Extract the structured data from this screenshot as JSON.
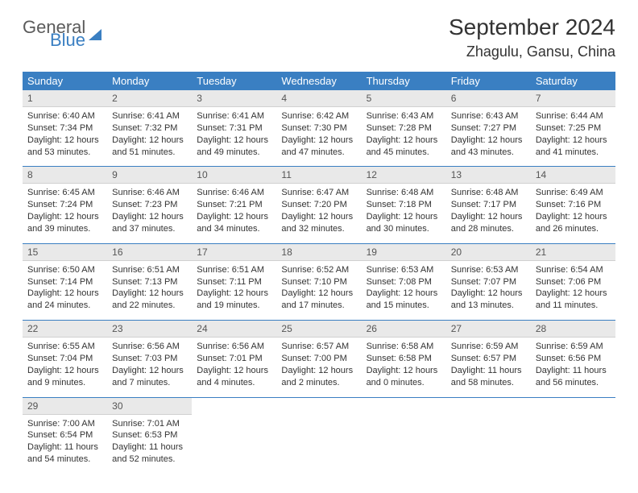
{
  "brand": {
    "word1": "General",
    "word2": "Blue"
  },
  "title": "September 2024",
  "location": "Zhagulu, Gansu, China",
  "day_headers": [
    "Sunday",
    "Monday",
    "Tuesday",
    "Wednesday",
    "Thursday",
    "Friday",
    "Saturday"
  ],
  "colors": {
    "header_bg": "#3a7fc2",
    "header_fg": "#ffffff",
    "daynum_bg": "#e9e9e9",
    "row_divider": "#3a7fc2",
    "text": "#333333"
  },
  "weeks": [
    [
      {
        "n": "1",
        "sr": "Sunrise: 6:40 AM",
        "ss": "Sunset: 7:34 PM",
        "dl1": "Daylight: 12 hours",
        "dl2": "and 53 minutes."
      },
      {
        "n": "2",
        "sr": "Sunrise: 6:41 AM",
        "ss": "Sunset: 7:32 PM",
        "dl1": "Daylight: 12 hours",
        "dl2": "and 51 minutes."
      },
      {
        "n": "3",
        "sr": "Sunrise: 6:41 AM",
        "ss": "Sunset: 7:31 PM",
        "dl1": "Daylight: 12 hours",
        "dl2": "and 49 minutes."
      },
      {
        "n": "4",
        "sr": "Sunrise: 6:42 AM",
        "ss": "Sunset: 7:30 PM",
        "dl1": "Daylight: 12 hours",
        "dl2": "and 47 minutes."
      },
      {
        "n": "5",
        "sr": "Sunrise: 6:43 AM",
        "ss": "Sunset: 7:28 PM",
        "dl1": "Daylight: 12 hours",
        "dl2": "and 45 minutes."
      },
      {
        "n": "6",
        "sr": "Sunrise: 6:43 AM",
        "ss": "Sunset: 7:27 PM",
        "dl1": "Daylight: 12 hours",
        "dl2": "and 43 minutes."
      },
      {
        "n": "7",
        "sr": "Sunrise: 6:44 AM",
        "ss": "Sunset: 7:25 PM",
        "dl1": "Daylight: 12 hours",
        "dl2": "and 41 minutes."
      }
    ],
    [
      {
        "n": "8",
        "sr": "Sunrise: 6:45 AM",
        "ss": "Sunset: 7:24 PM",
        "dl1": "Daylight: 12 hours",
        "dl2": "and 39 minutes."
      },
      {
        "n": "9",
        "sr": "Sunrise: 6:46 AM",
        "ss": "Sunset: 7:23 PM",
        "dl1": "Daylight: 12 hours",
        "dl2": "and 37 minutes."
      },
      {
        "n": "10",
        "sr": "Sunrise: 6:46 AM",
        "ss": "Sunset: 7:21 PM",
        "dl1": "Daylight: 12 hours",
        "dl2": "and 34 minutes."
      },
      {
        "n": "11",
        "sr": "Sunrise: 6:47 AM",
        "ss": "Sunset: 7:20 PM",
        "dl1": "Daylight: 12 hours",
        "dl2": "and 32 minutes."
      },
      {
        "n": "12",
        "sr": "Sunrise: 6:48 AM",
        "ss": "Sunset: 7:18 PM",
        "dl1": "Daylight: 12 hours",
        "dl2": "and 30 minutes."
      },
      {
        "n": "13",
        "sr": "Sunrise: 6:48 AM",
        "ss": "Sunset: 7:17 PM",
        "dl1": "Daylight: 12 hours",
        "dl2": "and 28 minutes."
      },
      {
        "n": "14",
        "sr": "Sunrise: 6:49 AM",
        "ss": "Sunset: 7:16 PM",
        "dl1": "Daylight: 12 hours",
        "dl2": "and 26 minutes."
      }
    ],
    [
      {
        "n": "15",
        "sr": "Sunrise: 6:50 AM",
        "ss": "Sunset: 7:14 PM",
        "dl1": "Daylight: 12 hours",
        "dl2": "and 24 minutes."
      },
      {
        "n": "16",
        "sr": "Sunrise: 6:51 AM",
        "ss": "Sunset: 7:13 PM",
        "dl1": "Daylight: 12 hours",
        "dl2": "and 22 minutes."
      },
      {
        "n": "17",
        "sr": "Sunrise: 6:51 AM",
        "ss": "Sunset: 7:11 PM",
        "dl1": "Daylight: 12 hours",
        "dl2": "and 19 minutes."
      },
      {
        "n": "18",
        "sr": "Sunrise: 6:52 AM",
        "ss": "Sunset: 7:10 PM",
        "dl1": "Daylight: 12 hours",
        "dl2": "and 17 minutes."
      },
      {
        "n": "19",
        "sr": "Sunrise: 6:53 AM",
        "ss": "Sunset: 7:08 PM",
        "dl1": "Daylight: 12 hours",
        "dl2": "and 15 minutes."
      },
      {
        "n": "20",
        "sr": "Sunrise: 6:53 AM",
        "ss": "Sunset: 7:07 PM",
        "dl1": "Daylight: 12 hours",
        "dl2": "and 13 minutes."
      },
      {
        "n": "21",
        "sr": "Sunrise: 6:54 AM",
        "ss": "Sunset: 7:06 PM",
        "dl1": "Daylight: 12 hours",
        "dl2": "and 11 minutes."
      }
    ],
    [
      {
        "n": "22",
        "sr": "Sunrise: 6:55 AM",
        "ss": "Sunset: 7:04 PM",
        "dl1": "Daylight: 12 hours",
        "dl2": "and 9 minutes."
      },
      {
        "n": "23",
        "sr": "Sunrise: 6:56 AM",
        "ss": "Sunset: 7:03 PM",
        "dl1": "Daylight: 12 hours",
        "dl2": "and 7 minutes."
      },
      {
        "n": "24",
        "sr": "Sunrise: 6:56 AM",
        "ss": "Sunset: 7:01 PM",
        "dl1": "Daylight: 12 hours",
        "dl2": "and 4 minutes."
      },
      {
        "n": "25",
        "sr": "Sunrise: 6:57 AM",
        "ss": "Sunset: 7:00 PM",
        "dl1": "Daylight: 12 hours",
        "dl2": "and 2 minutes."
      },
      {
        "n": "26",
        "sr": "Sunrise: 6:58 AM",
        "ss": "Sunset: 6:58 PM",
        "dl1": "Daylight: 12 hours",
        "dl2": "and 0 minutes."
      },
      {
        "n": "27",
        "sr": "Sunrise: 6:59 AM",
        "ss": "Sunset: 6:57 PM",
        "dl1": "Daylight: 11 hours",
        "dl2": "and 58 minutes."
      },
      {
        "n": "28",
        "sr": "Sunrise: 6:59 AM",
        "ss": "Sunset: 6:56 PM",
        "dl1": "Daylight: 11 hours",
        "dl2": "and 56 minutes."
      }
    ],
    [
      {
        "n": "29",
        "sr": "Sunrise: 7:00 AM",
        "ss": "Sunset: 6:54 PM",
        "dl1": "Daylight: 11 hours",
        "dl2": "and 54 minutes."
      },
      {
        "n": "30",
        "sr": "Sunrise: 7:01 AM",
        "ss": "Sunset: 6:53 PM",
        "dl1": "Daylight: 11 hours",
        "dl2": "and 52 minutes."
      },
      null,
      null,
      null,
      null,
      null
    ]
  ]
}
